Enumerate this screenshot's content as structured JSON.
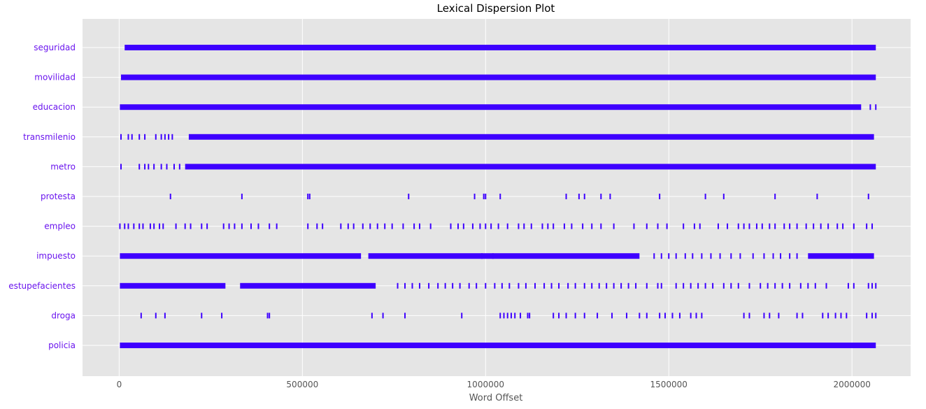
{
  "chart_data": {
    "type": "scatter",
    "title": "Lexical Dispersion Plot",
    "xlabel": "Word Offset",
    "ylabel": "",
    "xlim": [
      -100000,
      2160000
    ],
    "x_ticks": [
      0,
      500000,
      1000000,
      1500000,
      2000000
    ],
    "x_tick_labels": [
      "0",
      "500000",
      "1000000",
      "1500000",
      "2000000"
    ],
    "grid": true,
    "marker": "|",
    "colors": {
      "background": "#e5e5e5",
      "marker": "#3e00ff",
      "label": "#6a14ee",
      "grid": "#ffffff"
    },
    "series": [
      {
        "name": "seguridad",
        "spans": [
          [
            15000,
            2065000
          ]
        ],
        "points": [
          330000
        ]
      },
      {
        "name": "movilidad",
        "spans": [
          [
            5000,
            2065000
          ]
        ],
        "points": []
      },
      {
        "name": "educacion",
        "spans": [
          [
            2000,
            2025000
          ]
        ],
        "points": [
          2050000,
          2065000
        ]
      },
      {
        "name": "transmilenio",
        "spans": [
          [
            190000,
            2060000
          ]
        ],
        "points": [
          5000,
          25000,
          35000,
          55000,
          70000,
          100000,
          115000,
          125000,
          135000,
          145000
        ]
      },
      {
        "name": "metro",
        "spans": [
          [
            180000,
            2065000
          ]
        ],
        "points": [
          5000,
          55000,
          70000,
          80000,
          95000,
          115000,
          130000,
          150000,
          165000
        ]
      },
      {
        "name": "protesta",
        "spans": [],
        "points": [
          140000,
          335000,
          515000,
          520000,
          790000,
          970000,
          995000,
          1000000,
          1040000,
          1220000,
          1255000,
          1270000,
          1315000,
          1340000,
          1475000,
          1600000,
          1650000,
          1790000,
          1905000,
          2045000
        ]
      },
      {
        "name": "empleo",
        "spans": [],
        "points": [
          2000,
          15000,
          25000,
          40000,
          55000,
          65000,
          85000,
          95000,
          110000,
          120000,
          155000,
          180000,
          195000,
          225000,
          240000,
          285000,
          300000,
          315000,
          335000,
          360000,
          380000,
          410000,
          430000,
          515000,
          540000,
          555000,
          605000,
          625000,
          640000,
          665000,
          685000,
          705000,
          725000,
          745000,
          775000,
          805000,
          820000,
          850000,
          905000,
          925000,
          940000,
          965000,
          985000,
          1000000,
          1015000,
          1035000,
          1060000,
          1090000,
          1105000,
          1125000,
          1155000,
          1170000,
          1185000,
          1215000,
          1235000,
          1265000,
          1290000,
          1315000,
          1350000,
          1405000,
          1440000,
          1470000,
          1495000,
          1540000,
          1570000,
          1585000,
          1635000,
          1660000,
          1690000,
          1705000,
          1720000,
          1740000,
          1755000,
          1775000,
          1790000,
          1815000,
          1830000,
          1850000,
          1875000,
          1895000,
          1915000,
          1935000,
          1960000,
          1975000,
          2005000,
          2040000,
          2055000
        ]
      },
      {
        "name": "impuesto",
        "spans": [
          [
            2000,
            660000
          ],
          [
            680000,
            1420000
          ],
          [
            1880000,
            2060000
          ]
        ],
        "points": [
          990000,
          1020000,
          1460000,
          1480000,
          1500000,
          1520000,
          1545000,
          1565000,
          1590000,
          1615000,
          1640000,
          1670000,
          1695000,
          1730000,
          1760000,
          1785000,
          1805000,
          1830000,
          1850000
        ]
      },
      {
        "name": "estupefacientes",
        "spans": [
          [
            2000,
            290000
          ],
          [
            330000,
            700000
          ]
        ],
        "points": [
          760000,
          780000,
          800000,
          820000,
          845000,
          870000,
          890000,
          910000,
          930000,
          955000,
          975000,
          1000000,
          1025000,
          1045000,
          1065000,
          1090000,
          1110000,
          1135000,
          1160000,
          1180000,
          1200000,
          1225000,
          1245000,
          1270000,
          1290000,
          1310000,
          1330000,
          1350000,
          1370000,
          1390000,
          1410000,
          1440000,
          1470000,
          1480000,
          1520000,
          1540000,
          1560000,
          1580000,
          1600000,
          1620000,
          1650000,
          1670000,
          1690000,
          1720000,
          1750000,
          1770000,
          1790000,
          1810000,
          1830000,
          1860000,
          1880000,
          1900000,
          1930000,
          1990000,
          2005000,
          2045000,
          2055000,
          2065000
        ]
      },
      {
        "name": "droga",
        "spans": [],
        "points": [
          60000,
          100000,
          125000,
          225000,
          280000,
          405000,
          410000,
          690000,
          720000,
          780000,
          935000,
          1040000,
          1050000,
          1060000,
          1070000,
          1080000,
          1095000,
          1115000,
          1120000,
          1185000,
          1200000,
          1220000,
          1245000,
          1270000,
          1305000,
          1345000,
          1385000,
          1420000,
          1440000,
          1475000,
          1490000,
          1510000,
          1530000,
          1560000,
          1575000,
          1590000,
          1705000,
          1720000,
          1760000,
          1775000,
          1800000,
          1850000,
          1865000,
          1920000,
          1935000,
          1955000,
          1970000,
          1985000,
          2040000,
          2055000,
          2065000
        ]
      },
      {
        "name": "policia",
        "spans": [
          [
            2000,
            2065000
          ]
        ],
        "points": []
      }
    ]
  }
}
